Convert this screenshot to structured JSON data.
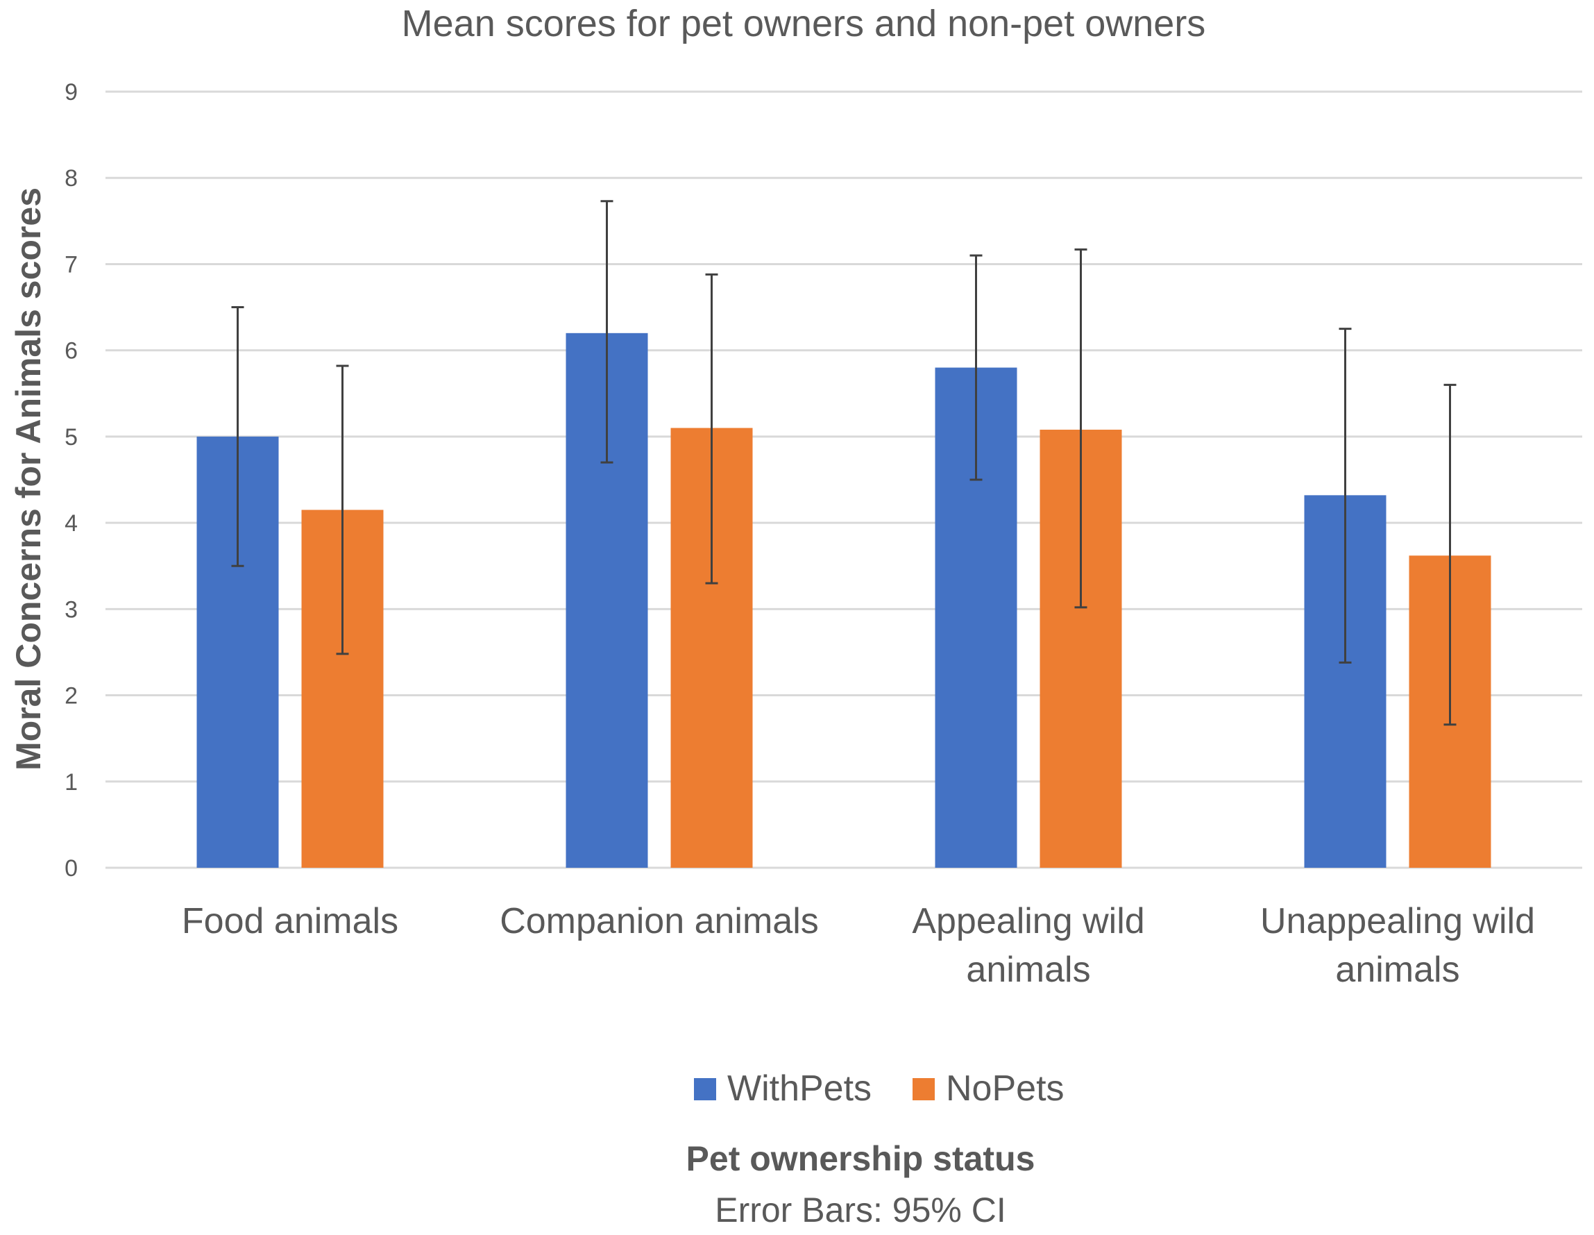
{
  "chart_data": {
    "type": "bar",
    "title": "Mean scores for pet owners and non-pet owners",
    "ylabel": "Moral Concerns for Animals scores",
    "xlabel": "Pet ownership status",
    "note": "Error Bars: 95% CI",
    "ylim": [
      0,
      9
    ],
    "yticks": [
      "0",
      "1",
      "2",
      "3",
      "4",
      "5",
      "6",
      "7",
      "8",
      "9"
    ],
    "grid": true,
    "legend_position": "bottom",
    "categories": [
      [
        "Food animals"
      ],
      [
        "Companion animals"
      ],
      [
        "Appealing wild",
        "animals"
      ],
      [
        "Unappealing wild",
        "animals"
      ]
    ],
    "series": [
      {
        "name": "WithPets",
        "color": "#4472c4",
        "values": [
          5.0,
          6.2,
          5.8,
          4.32
        ],
        "ci_low": [
          3.5,
          4.7,
          4.5,
          2.38
        ],
        "ci_high": [
          6.5,
          7.73,
          7.1,
          6.25
        ]
      },
      {
        "name": "NoPets",
        "color": "#ed7d31",
        "values": [
          4.15,
          5.1,
          5.08,
          3.62
        ],
        "ci_low": [
          2.48,
          3.3,
          3.02,
          1.66
        ],
        "ci_high": [
          5.82,
          6.88,
          7.17,
          5.6
        ]
      }
    ]
  }
}
